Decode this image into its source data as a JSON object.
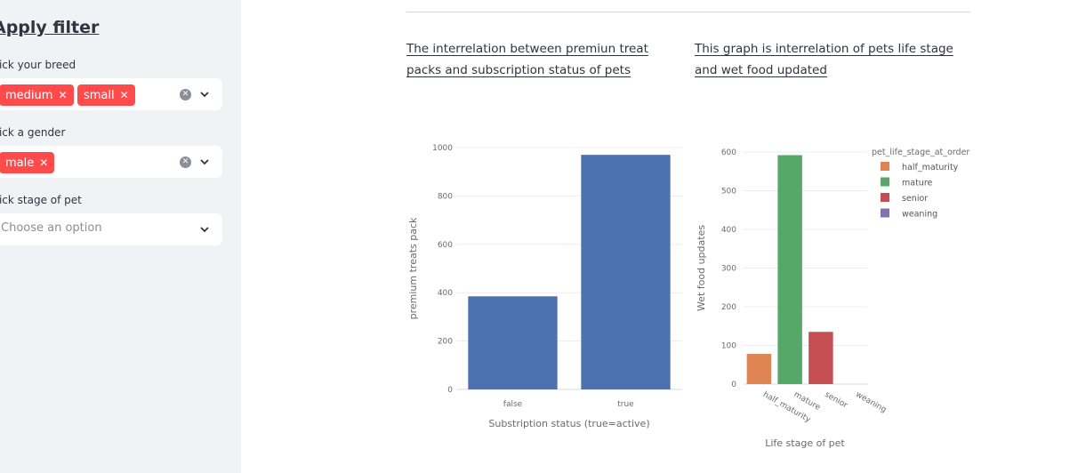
{
  "sidebar": {
    "title": "Apply filter",
    "breed_label": "Pick your breed",
    "breed_tags": [
      "medium",
      "small"
    ],
    "gender_label": "Pick a gender",
    "gender_tags": [
      "male"
    ],
    "stage_label": "Pick stage of pet",
    "stage_placeholder": "Choose an option",
    "tag_color": "#ff4b4b"
  },
  "main": {
    "heading_left": "The interrelation between premiun treat packs and subscription status of pets",
    "heading_right": "This graph is interrelation of pets life stage and wet food updated"
  },
  "chart_data": [
    {
      "type": "bar",
      "title": "",
      "categories": [
        "false",
        "true"
      ],
      "values": [
        385,
        970
      ],
      "xlabel": "Substription status (true=active)",
      "ylabel": "premium treats pack",
      "ylim": [
        0,
        1000
      ],
      "yticks": [
        0,
        200,
        400,
        600,
        800,
        1000
      ],
      "color": "#4c72b0",
      "grid": true
    },
    {
      "type": "bar",
      "title": "",
      "categories": [
        "half_maturity",
        "mature",
        "senior",
        "weaning"
      ],
      "values": [
        78,
        592,
        135,
        0
      ],
      "colors": [
        "#dd8452",
        "#55a868",
        "#c44e52",
        "#8172b3"
      ],
      "xlabel": "Life stage of pet",
      "ylabel": "Wet food updates",
      "ylim": [
        0,
        600
      ],
      "yticks": [
        0,
        100,
        200,
        300,
        400,
        500,
        600
      ],
      "legend_title": "pet_life_stage_at_order",
      "legend_position": "top-right",
      "legend": [
        "half_maturity",
        "mature",
        "senior",
        "weaning"
      ],
      "grid": true
    }
  ]
}
